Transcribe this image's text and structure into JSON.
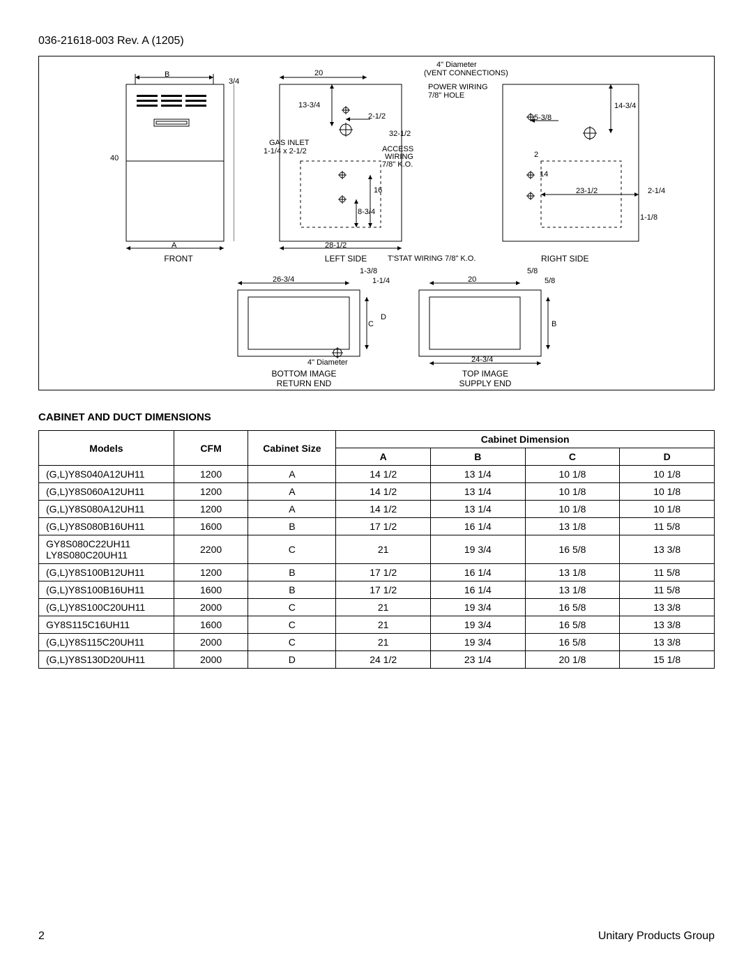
{
  "header": {
    "doc_id": "036-21618-003 Rev. A (1205)"
  },
  "diagram": {
    "front": {
      "title": "FRONT",
      "dim_B": "B",
      "dim_A": "A",
      "dim_40": "40",
      "dim_3_4": "3/4"
    },
    "left": {
      "title": "LEFT SIDE",
      "dim_20": "20",
      "dim_13_3_4": "13-3/4",
      "dim_2_1_2": "2-1/2",
      "dim_32_1_2": "32-1/2",
      "gas_inlet": "GAS INLET",
      "gas_inlet_size": "1-1/4 x 2-1/2",
      "access_wiring": "ACCESS",
      "access_wiring2": "WIRING",
      "access_wiring3": "7/8\" K.O.",
      "dim_16": "16",
      "dim_8_3_4": "8-3/4",
      "dim_28_1_2": "28-1/2",
      "tstat": "T'STAT WIRING 7/8\" K.O."
    },
    "top_callouts": {
      "vent_diameter": "4\" Diameter",
      "vent_conn": "(VENT CONNECTIONS)",
      "power_wiring": "POWER WIRING",
      "power_hole": "7/8\" HOLE"
    },
    "right": {
      "title": "RIGHT SIDE",
      "dim_14_3_4": "14-3/4",
      "dim_5_3_8": "5-3/8",
      "dim_2": "2",
      "dim_14": "14",
      "dim_23_1_2": "23-1/2",
      "dim_2_1_4": "2-1/4",
      "dim_1_1_8": "1-1/8"
    },
    "bottom": {
      "title1": "BOTTOM IMAGE",
      "title2": "RETURN END",
      "dim_26_3_4": "26-3/4",
      "dim_1_3_8": "1-3/8",
      "dim_1_1_4": "1-1/4",
      "dim_C": "C",
      "dim_D": "D",
      "vent_diameter": "4\" Diameter"
    },
    "supply": {
      "title1": "TOP IMAGE",
      "title2": "SUPPLY END",
      "dim_5_8_top": "5/8",
      "dim_5_8_right": "5/8",
      "dim_20": "20",
      "dim_B": "B",
      "dim_24_3_4": "24-3/4"
    }
  },
  "table": {
    "title": "CABINET AND DUCT DIMENSIONS",
    "headers": {
      "models": "Models",
      "cfm": "CFM",
      "cabinet_size": "Cabinet Size",
      "cabinet_dim": "Cabinet Dimension",
      "a": "A",
      "b": "B",
      "c": "C",
      "d": "D"
    },
    "columns": [
      "Models",
      "CFM",
      "Cabinet Size",
      "A",
      "B",
      "C",
      "D"
    ],
    "col_widths_pct": [
      20,
      11,
      13,
      14,
      14,
      14,
      14
    ],
    "rows": [
      {
        "model": "(G,L)Y8S040A12UH11",
        "cfm": "1200",
        "size": "A",
        "a": "14 1/2",
        "b": "13 1/4",
        "c": "10 1/8",
        "d": "10 1/8"
      },
      {
        "model": "(G,L)Y8S060A12UH11",
        "cfm": "1200",
        "size": "A",
        "a": "14 1/2",
        "b": "13 1/4",
        "c": "10 1/8",
        "d": "10 1/8"
      },
      {
        "model": "(G,L)Y8S080A12UH11",
        "cfm": "1200",
        "size": "A",
        "a": "14 1/2",
        "b": "13 1/4",
        "c": "10 1/8",
        "d": "10 1/8"
      },
      {
        "model": "(G,L)Y8S080B16UH11",
        "cfm": "1600",
        "size": "B",
        "a": "17 1/2",
        "b": "16 1/4",
        "c": "13 1/8",
        "d": "11 5/8"
      },
      {
        "model": "GY8S080C22UH11\nLY8S080C20UH11",
        "cfm": "2200",
        "size": "C",
        "a": "21",
        "b": "19 3/4",
        "c": "16 5/8",
        "d": "13 3/8"
      },
      {
        "model": "(G,L)Y8S100B12UH11",
        "cfm": "1200",
        "size": "B",
        "a": "17 1/2",
        "b": "16 1/4",
        "c": "13 1/8",
        "d": "11 5/8"
      },
      {
        "model": "(G,L)Y8S100B16UH11",
        "cfm": "1600",
        "size": "B",
        "a": "17 1/2",
        "b": "16 1/4",
        "c": "13 1/8",
        "d": "11 5/8"
      },
      {
        "model": "(G,L)Y8S100C20UH11",
        "cfm": "2000",
        "size": "C",
        "a": "21",
        "b": "19 3/4",
        "c": "16 5/8",
        "d": "13 3/8"
      },
      {
        "model": "GY8S115C16UH11",
        "cfm": "1600",
        "size": "C",
        "a": "21",
        "b": "19 3/4",
        "c": "16 5/8",
        "d": "13 3/8"
      },
      {
        "model": "(G,L)Y8S115C20UH11",
        "cfm": "2000",
        "size": "C",
        "a": "21",
        "b": "19 3/4",
        "c": "16 5/8",
        "d": "13 3/8"
      },
      {
        "model": "(G,L)Y8S130D20UH11",
        "cfm": "2000",
        "size": "D",
        "a": "24 1/2",
        "b": "23 1/4",
        "c": "20 1/8",
        "d": "15 1/8"
      }
    ]
  },
  "footer": {
    "page": "2",
    "org": "Unitary Products Group"
  },
  "style": {
    "page_bg": "#ffffff",
    "text_color": "#000000",
    "border_color": "#000000",
    "body_fontsize": 14,
    "header_fontsize": 15,
    "diagram_fontsize": 11
  }
}
